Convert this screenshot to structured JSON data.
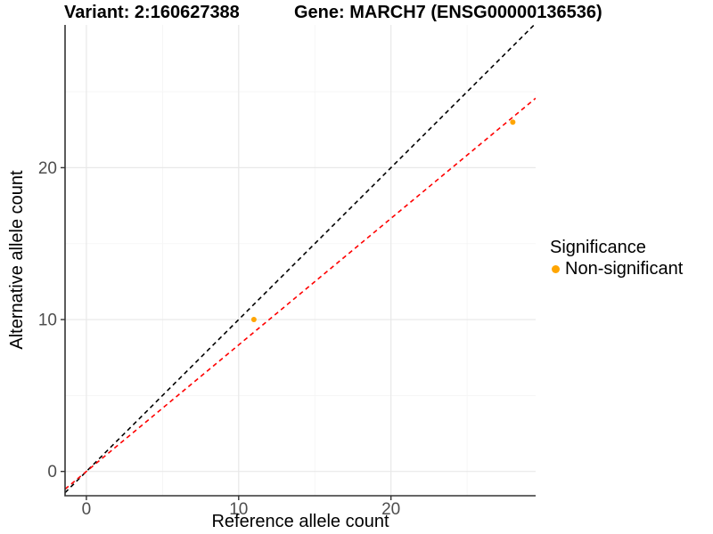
{
  "chart_data": {
    "type": "scatter",
    "title_left": "Variant: 2:160627388",
    "title_right": "Gene: MARCH7 (ENSG00000136536)",
    "xlabel": "Reference allele count",
    "ylabel": "Alternative allele count",
    "xlim": [
      -1.4,
      29.5
    ],
    "ylim": [
      -1.6,
      29.4
    ],
    "x_ticks": [
      0,
      10,
      20
    ],
    "y_ticks": [
      0,
      10,
      20
    ],
    "x_minor_ticks": [
      5,
      15,
      25
    ],
    "y_minor_ticks": [
      5,
      15,
      25
    ],
    "grid": "on",
    "legend_position": "right",
    "series": [
      {
        "name": "Non-significant",
        "color": "#FFA500",
        "points": [
          {
            "x": 11,
            "y": 10
          },
          {
            "x": 28,
            "y": 23
          }
        ]
      }
    ],
    "reference_lines": [
      {
        "name": "identity",
        "slope": 1.0,
        "intercept": 0,
        "color": "#000000",
        "linetype": "dashed"
      },
      {
        "name": "fit",
        "slope": 0.833,
        "intercept": 0,
        "color": "#FF0000",
        "linetype": "dashed"
      }
    ],
    "legend": {
      "title": "Significance",
      "items": [
        {
          "label": "Non-significant",
          "color": "#FFA500"
        }
      ]
    }
  },
  "colors": {
    "point": "#FFA500",
    "identity_line": "#000000",
    "fit_line": "#FF0000",
    "grid_major": "#e8e8e8",
    "grid_minor": "#f4f4f4",
    "axis_line": "#333333",
    "tick_text": "#4d4d4d"
  }
}
